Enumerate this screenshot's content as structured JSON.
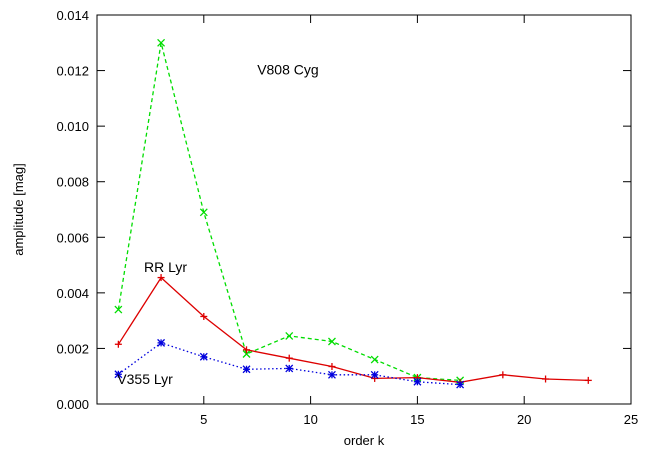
{
  "chart_data": {
    "type": "line",
    "title": "",
    "xlabel": "order k",
    "ylabel": "amplitude [mag]",
    "xlim": [
      0,
      25
    ],
    "ylim": [
      0,
      0.014
    ],
    "xticks": [
      5,
      10,
      15,
      20,
      25
    ],
    "xtick_labels": [
      "5",
      "10",
      "15",
      "20",
      "25"
    ],
    "yticks": [
      0,
      0.002,
      0.004,
      0.006,
      0.008,
      0.01,
      0.012,
      0.014
    ],
    "ytick_labels": [
      "0.000",
      "0.002",
      "0.004",
      "0.006",
      "0.008",
      "0.010",
      "0.012",
      "0.014"
    ],
    "grid": false,
    "series": [
      {
        "name": "V808 Cyg",
        "color": "#00dd00",
        "line": "dashed",
        "marker": "x",
        "x": [
          1,
          3,
          5,
          7,
          9,
          11,
          13,
          15,
          17
        ],
        "y": [
          0.0034,
          0.013,
          0.0069,
          0.0018,
          0.00245,
          0.00225,
          0.0016,
          0.00095,
          0.00085
        ]
      },
      {
        "name": "RR Lyr",
        "color": "#dd0000",
        "line": "solid",
        "marker": "plus",
        "x": [
          1,
          3,
          5,
          7,
          9,
          11,
          13,
          15,
          17,
          19,
          21,
          23
        ],
        "y": [
          0.00215,
          0.00455,
          0.00315,
          0.00195,
          0.00165,
          0.00135,
          0.00092,
          0.00095,
          0.00078,
          0.00105,
          0.0009,
          0.00085
        ]
      },
      {
        "name": "V355 Lyr",
        "color": "#0000dd",
        "line": "dotted",
        "marker": "star",
        "x": [
          1,
          3,
          5,
          7,
          9,
          11,
          13,
          15,
          17
        ],
        "y": [
          0.00107,
          0.0022,
          0.0017,
          0.00125,
          0.00128,
          0.00105,
          0.00105,
          0.0008,
          0.0007
        ]
      }
    ],
    "annotations": [
      {
        "text": "V808 Cyg",
        "x": 7.5,
        "y": 0.01185
      },
      {
        "text": "RR Lyr",
        "x": 2.2,
        "y": 0.00475
      },
      {
        "text": "V355 Lyr",
        "x": 0.95,
        "y": 0.00072
      }
    ]
  }
}
